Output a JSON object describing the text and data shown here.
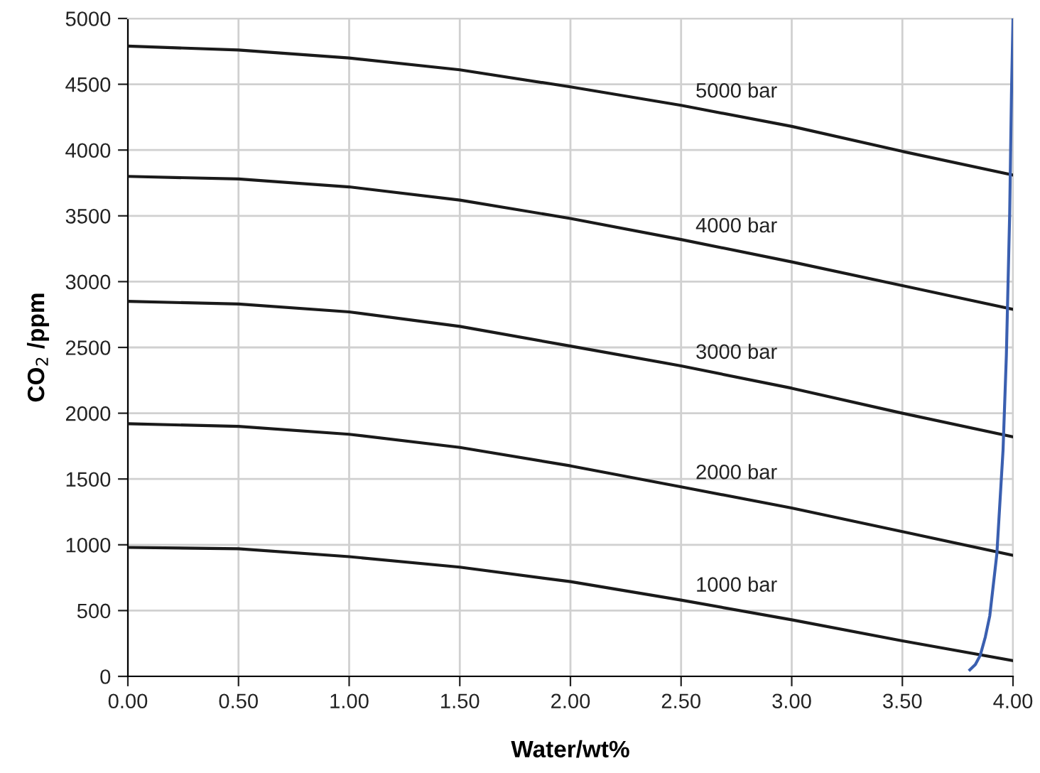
{
  "chart_data": {
    "type": "line",
    "xlabel": "Water/wt%",
    "ylabel": "CO$_{2}$ /ppm",
    "x": [
      0,
      0.5,
      1.0,
      1.5,
      2.0,
      2.5,
      3.0,
      3.5,
      4.0
    ],
    "series": [
      {
        "name": "5000 bar",
        "color": "#1a1a1a",
        "values": [
          4790,
          4760,
          4700,
          4610,
          4480,
          4340,
          4180,
          3990,
          3810
        ]
      },
      {
        "name": "4000 bar",
        "color": "#1a1a1a",
        "values": [
          3800,
          3780,
          3720,
          3620,
          3480,
          3320,
          3150,
          2970,
          2790
        ]
      },
      {
        "name": "3000 bar",
        "color": "#1a1a1a",
        "values": [
          2850,
          2830,
          2770,
          2660,
          2510,
          2360,
          2190,
          2000,
          1820
        ]
      },
      {
        "name": "2000 bar",
        "color": "#1a1a1a",
        "values": [
          1920,
          1900,
          1840,
          1740,
          1600,
          1440,
          1280,
          1100,
          920
        ]
      },
      {
        "name": "1000 bar",
        "color": "#1a1a1a",
        "values": [
          980,
          970,
          910,
          830,
          720,
          580,
          430,
          270,
          120
        ]
      },
      {
        "color": "#3a5fb0",
        "x": [
          3.805,
          3.83,
          3.852,
          3.875,
          3.895,
          3.927,
          3.955,
          3.97,
          3.985,
          3.993,
          4.0
        ],
        "values": [
          50,
          90,
          160,
          300,
          460,
          930,
          1720,
          2440,
          3520,
          4420,
          5000
        ]
      }
    ],
    "xlim": [
      0,
      4
    ],
    "ylim": [
      0,
      5000
    ],
    "xticks": [
      {
        "value": 0,
        "label": "0.00"
      },
      {
        "value": 0.5,
        "label": "0.50"
      },
      {
        "value": 1,
        "label": "1.00"
      },
      {
        "value": 1.5,
        "label": "1.50"
      },
      {
        "value": 2,
        "label": "2.00"
      },
      {
        "value": 2.5,
        "label": "2.50"
      },
      {
        "value": 3,
        "label": "3.00"
      },
      {
        "value": 3.5,
        "label": "3.50"
      },
      {
        "value": 4,
        "label": "4.00"
      }
    ],
    "yticks": [
      0,
      500,
      1000,
      1500,
      2000,
      2500,
      3000,
      3500,
      4000,
      4500,
      5000
    ],
    "grid": true
  }
}
